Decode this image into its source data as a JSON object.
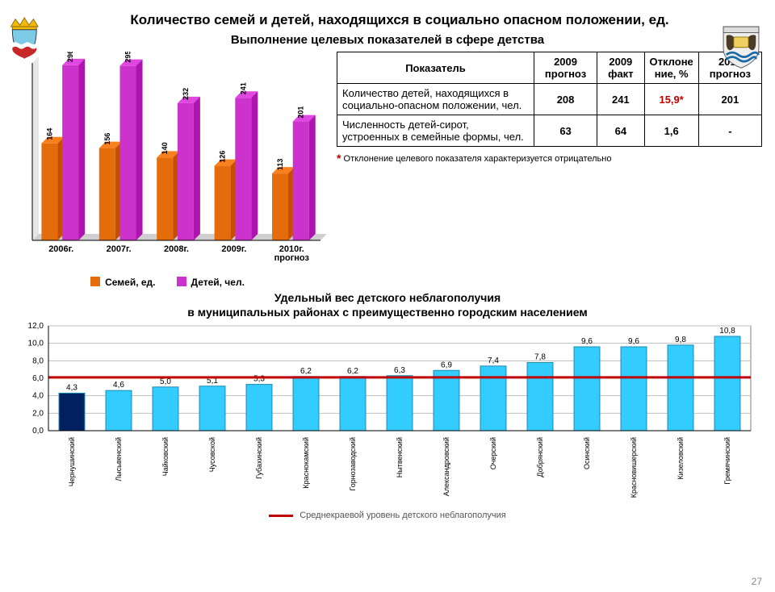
{
  "page": {
    "title": "Количество семей и детей, находящихся в социально опасном положении, ед.",
    "subtitle": "Выполнение  целевых показателей в сфере детства",
    "sect_title_l1": "Удельный вес детского неблагополучия",
    "sect_title_l2": "в муниципальных районах с преимущественно городским населением",
    "page_number": "27"
  },
  "grouped_chart": {
    "type": "bar-grouped",
    "categories": [
      "2006г.",
      "2007г.",
      "2008г.",
      "2009г.",
      "2010г. прогноз"
    ],
    "series": [
      {
        "name": "Семей, ед.",
        "color": "#e46c0a",
        "values": [
          164,
          156,
          140,
          126,
          113
        ]
      },
      {
        "name": "Детей, чел.",
        "color": "#cc33cc",
        "values": [
          296,
          295,
          232,
          241,
          201
        ]
      }
    ],
    "y_max": 300,
    "label_fontsize": 9,
    "axis_fontweight": "bold",
    "background": "#ffffff",
    "depth3d": 8
  },
  "table": {
    "columns": [
      "Показатель",
      "2009 прогноз",
      "2009 факт",
      "Отклоне\nние, %",
      "2010 прогноз"
    ],
    "rows": [
      {
        "label": "Количество детей, находящихся в социально-опасном положении, чел.",
        "c1": "208",
        "c2": "241",
        "c3": "15,9*",
        "c3_red": true,
        "c4": "201"
      },
      {
        "label": "Численность детей-сирот, устроенных в семейные формы, чел.",
        "c1": "63",
        "c2": "64",
        "c3": "1,6",
        "c3_red": false,
        "c4": "-"
      }
    ],
    "footnote_star": "*",
    "footnote_text": " Отклонение целевого показателя характеризуется отрицательно"
  },
  "line_chart": {
    "type": "bar-with-line",
    "categories": [
      "Чернушинский",
      "Лысьвенский",
      "Чайковский",
      "Чусовской",
      "Губахинский",
      "Краснокамский",
      "Горнозаводский",
      "Нытвенский",
      "Александровский",
      "Очерский",
      "Добрянский",
      "Осинский",
      "Красновишерский",
      "Кизеловский",
      "Гремячинский"
    ],
    "values": [
      4.3,
      4.6,
      5.0,
      5.1,
      5.3,
      6.2,
      6.2,
      6.3,
      6.9,
      7.4,
      7.8,
      9.6,
      9.6,
      9.8,
      10.8
    ],
    "highlight_index": 0,
    "y_min": 0.0,
    "y_max": 12.0,
    "y_step": 2.0,
    "bar_color": "#33ccff",
    "highlight_color": "#002060",
    "grid_color": "#bfbfbf",
    "axis_color": "#000000",
    "plot_border": "#808080",
    "background": "#ffffff",
    "reference_line": {
      "value": 6.1,
      "color": "#c00000",
      "width": 3,
      "label": "Среднекраевой уровень детского неблагополучия"
    },
    "label_fontsize": 9
  },
  "crest_colors": {
    "crown": "#f4b90c",
    "shield_top": "#7ecbe8",
    "shield_bottom": "#c62828",
    "band": "#ffffff"
  }
}
